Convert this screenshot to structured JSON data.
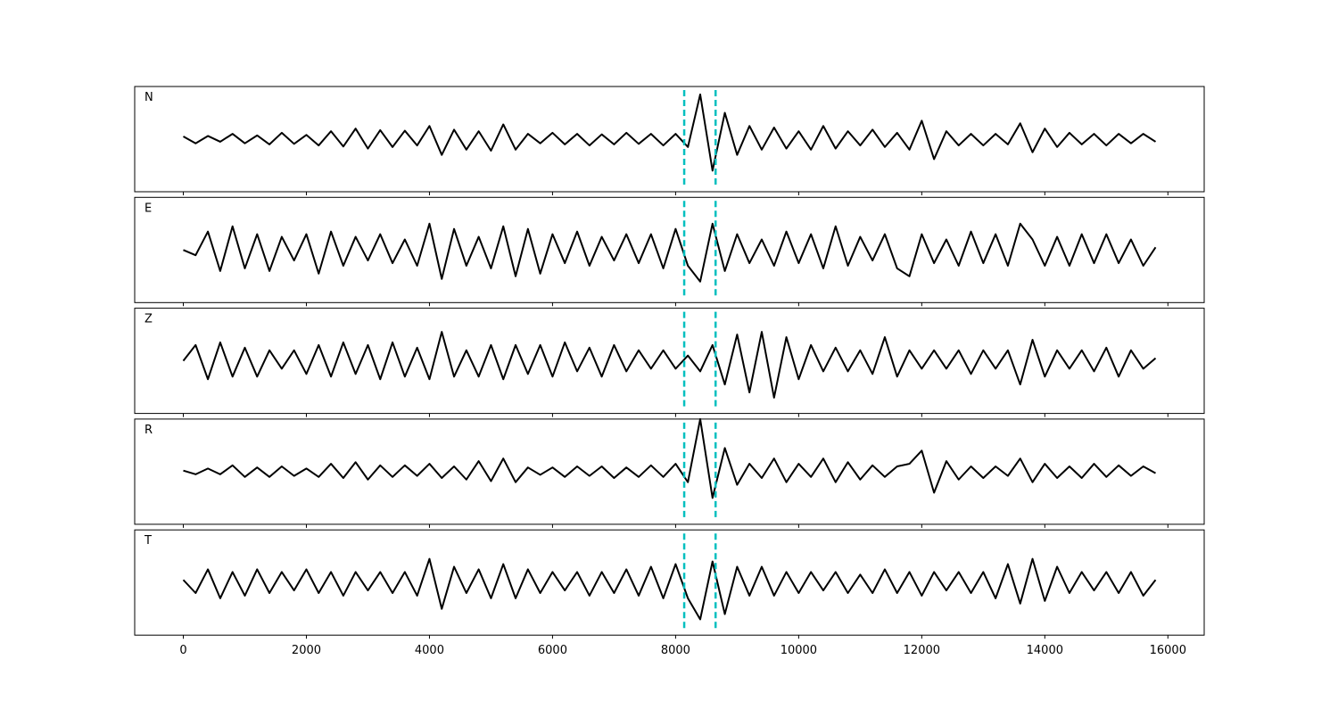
{
  "chart_data": {
    "type": "line",
    "x": [
      0,
      200,
      400,
      600,
      800,
      1000,
      1200,
      1400,
      1600,
      1800,
      2000,
      2200,
      2400,
      2600,
      2800,
      3000,
      3200,
      3400,
      3600,
      3800,
      4000,
      4200,
      4400,
      4600,
      4800,
      5000,
      5200,
      5400,
      5600,
      5800,
      6000,
      6200,
      6400,
      6600,
      6800,
      7000,
      7200,
      7400,
      7600,
      7800,
      8000,
      8200,
      8400,
      8600,
      8800,
      9000,
      9200,
      9400,
      9600,
      9800,
      10000,
      10200,
      10400,
      10600,
      10800,
      11000,
      11200,
      11400,
      11600,
      11800,
      12000,
      12200,
      12400,
      12600,
      12800,
      13000,
      13200,
      13400,
      13600,
      13800,
      14000,
      14200,
      14400,
      14600,
      14800,
      15000,
      15200,
      15400,
      15600,
      15800
    ],
    "series": [
      {
        "name": "N",
        "color": "#000000",
        "values": [
          0.05,
          -0.08,
          0.06,
          -0.05,
          0.1,
          -0.08,
          0.07,
          -0.1,
          0.12,
          -0.09,
          0.08,
          -0.12,
          0.15,
          -0.14,
          0.2,
          -0.18,
          0.17,
          -0.15,
          0.16,
          -0.12,
          0.25,
          -0.3,
          0.18,
          -0.2,
          0.15,
          -0.22,
          0.28,
          -0.2,
          0.1,
          -0.08,
          0.12,
          -0.1,
          0.1,
          -0.12,
          0.09,
          -0.1,
          0.12,
          -0.09,
          0.1,
          -0.12,
          0.1,
          -0.15,
          0.85,
          -0.6,
          0.5,
          -0.3,
          0.25,
          -0.2,
          0.22,
          -0.18,
          0.15,
          -0.2,
          0.25,
          -0.18,
          0.15,
          -0.12,
          0.18,
          -0.15,
          0.12,
          -0.2,
          0.35,
          -0.38,
          0.15,
          -0.12,
          0.1,
          -0.12,
          0.1,
          -0.1,
          0.3,
          -0.25,
          0.2,
          -0.15,
          0.12,
          -0.1,
          0.1,
          -0.12,
          0.1,
          -0.08,
          0.1,
          -0.05
        ]
      },
      {
        "name": "E",
        "color": "#000000",
        "values": [
          0.0,
          -0.1,
          0.35,
          -0.4,
          0.45,
          -0.35,
          0.3,
          -0.4,
          0.25,
          -0.2,
          0.3,
          -0.45,
          0.35,
          -0.3,
          0.25,
          -0.2,
          0.3,
          -0.25,
          0.2,
          -0.3,
          0.5,
          -0.55,
          0.4,
          -0.3,
          0.25,
          -0.35,
          0.45,
          -0.5,
          0.4,
          -0.45,
          0.3,
          -0.25,
          0.35,
          -0.3,
          0.25,
          -0.2,
          0.3,
          -0.25,
          0.3,
          -0.35,
          0.4,
          -0.3,
          -0.6,
          0.5,
          -0.4,
          0.3,
          -0.25,
          0.2,
          -0.3,
          0.35,
          -0.25,
          0.3,
          -0.35,
          0.45,
          -0.3,
          0.25,
          -0.2,
          0.3,
          -0.35,
          -0.5,
          0.3,
          -0.25,
          0.2,
          -0.3,
          0.35,
          -0.25,
          0.3,
          -0.3,
          0.5,
          0.2,
          -0.3,
          0.25,
          -0.3,
          0.3,
          -0.25,
          0.3,
          -0.25,
          0.2,
          -0.3,
          0.05
        ]
      },
      {
        "name": "Z",
        "color": "#000000",
        "values": [
          0.0,
          0.3,
          -0.35,
          0.35,
          -0.3,
          0.25,
          -0.3,
          0.2,
          -0.15,
          0.2,
          -0.25,
          0.3,
          -0.3,
          0.35,
          -0.25,
          0.3,
          -0.35,
          0.35,
          -0.3,
          0.25,
          -0.35,
          0.55,
          -0.3,
          0.2,
          -0.3,
          0.3,
          -0.35,
          0.3,
          -0.25,
          0.3,
          -0.3,
          0.35,
          -0.2,
          0.25,
          -0.3,
          0.3,
          -0.2,
          0.2,
          -0.15,
          0.2,
          -0.15,
          0.1,
          -0.2,
          0.3,
          -0.45,
          0.5,
          -0.6,
          0.55,
          -0.7,
          0.45,
          -0.35,
          0.3,
          -0.2,
          0.25,
          -0.2,
          0.2,
          -0.25,
          0.45,
          -0.3,
          0.2,
          -0.15,
          0.2,
          -0.15,
          0.2,
          -0.25,
          0.2,
          -0.15,
          0.2,
          -0.45,
          0.4,
          -0.3,
          0.2,
          -0.15,
          0.2,
          -0.2,
          0.25,
          -0.3,
          0.2,
          -0.15,
          0.05
        ]
      },
      {
        "name": "R",
        "color": "#000000",
        "values": [
          0.02,
          -0.05,
          0.06,
          -0.05,
          0.12,
          -0.1,
          0.08,
          -0.1,
          0.1,
          -0.08,
          0.06,
          -0.1,
          0.15,
          -0.12,
          0.18,
          -0.15,
          0.12,
          -0.1,
          0.12,
          -0.08,
          0.15,
          -0.12,
          0.1,
          -0.15,
          0.2,
          -0.18,
          0.25,
          -0.2,
          0.08,
          -0.06,
          0.08,
          -0.1,
          0.1,
          -0.08,
          0.1,
          -0.12,
          0.08,
          -0.1,
          0.12,
          -0.1,
          0.15,
          -0.2,
          1.0,
          -0.5,
          0.45,
          -0.25,
          0.15,
          -0.12,
          0.25,
          -0.2,
          0.15,
          -0.1,
          0.25,
          -0.2,
          0.18,
          -0.15,
          0.12,
          -0.1,
          0.1,
          0.15,
          0.4,
          -0.4,
          0.2,
          -0.15,
          0.1,
          -0.12,
          0.1,
          -0.08,
          0.25,
          -0.2,
          0.15,
          -0.12,
          0.1,
          -0.12,
          0.15,
          -0.1,
          0.12,
          -0.08,
          0.1,
          -0.03
        ]
      },
      {
        "name": "T",
        "color": "#000000",
        "values": [
          0.05,
          -0.2,
          0.25,
          -0.3,
          0.2,
          -0.25,
          0.25,
          -0.2,
          0.2,
          -0.15,
          0.25,
          -0.2,
          0.2,
          -0.25,
          0.2,
          -0.15,
          0.2,
          -0.2,
          0.2,
          -0.25,
          0.45,
          -0.5,
          0.3,
          -0.2,
          0.25,
          -0.3,
          0.35,
          -0.3,
          0.25,
          -0.2,
          0.2,
          -0.15,
          0.2,
          -0.25,
          0.2,
          -0.2,
          0.25,
          -0.25,
          0.3,
          -0.3,
          0.35,
          -0.3,
          -0.7,
          0.4,
          -0.6,
          0.3,
          -0.25,
          0.3,
          -0.25,
          0.2,
          -0.2,
          0.2,
          -0.15,
          0.2,
          -0.2,
          0.15,
          -0.2,
          0.25,
          -0.2,
          0.2,
          -0.25,
          0.2,
          -0.15,
          0.2,
          -0.2,
          0.2,
          -0.3,
          0.35,
          -0.4,
          0.45,
          -0.35,
          0.3,
          -0.2,
          0.2,
          -0.15,
          0.2,
          -0.2,
          0.2,
          -0.25,
          0.05
        ]
      }
    ],
    "xlim": [
      -790,
      16590
    ],
    "xticks": [
      0,
      2000,
      4000,
      6000,
      8000,
      10000,
      12000,
      14000,
      16000
    ],
    "ylim": [
      -1,
      1
    ],
    "vlines": [
      8140,
      8650
    ],
    "vline_color": "#00bfbf"
  }
}
